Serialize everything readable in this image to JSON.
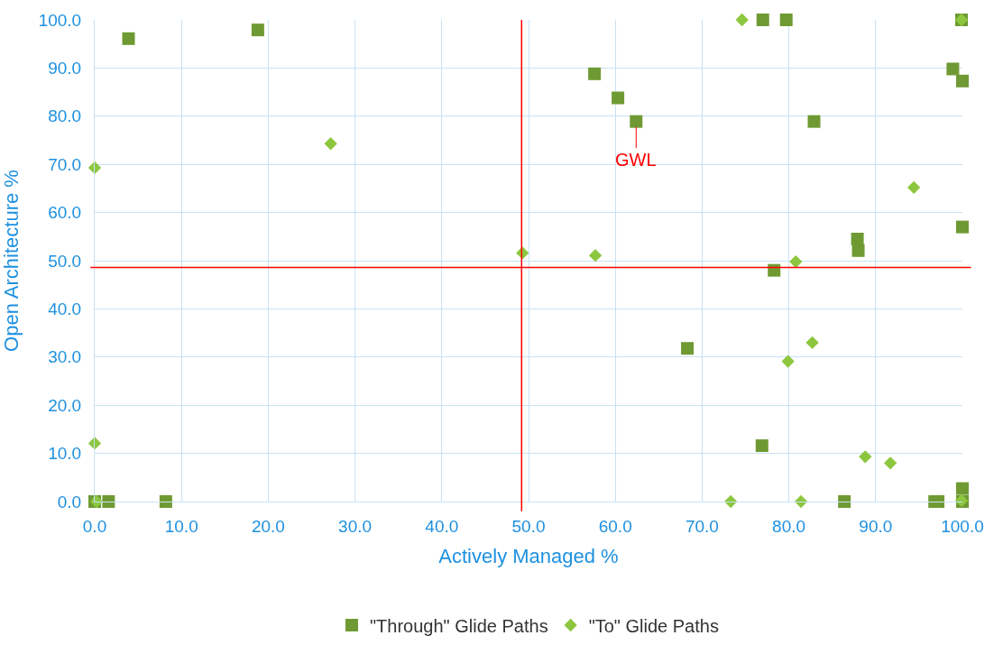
{
  "chart_data": {
    "type": "scatter",
    "xlabel": "Actively Managed %",
    "ylabel": "Open Architecture %",
    "xlim": [
      0,
      100
    ],
    "ylim": [
      0,
      100
    ],
    "xticks": [
      {
        "value": 0,
        "label": "0.0"
      },
      {
        "value": 10,
        "label": "10.0"
      },
      {
        "value": 20,
        "label": "20.0"
      },
      {
        "value": 30,
        "label": "30.0"
      },
      {
        "value": 40,
        "label": "40.0"
      },
      {
        "value": 50,
        "label": "50.0"
      },
      {
        "value": 60,
        "label": "60.0"
      },
      {
        "value": 70,
        "label": "70.0"
      },
      {
        "value": 80,
        "label": "80.0"
      },
      {
        "value": 90,
        "label": "90.0"
      },
      {
        "value": 100,
        "label": "100.0"
      }
    ],
    "yticks": [
      {
        "value": 0,
        "label": "0.0"
      },
      {
        "value": 10,
        "label": "10.0"
      },
      {
        "value": 20,
        "label": "20.0"
      },
      {
        "value": 30,
        "label": "30.0"
      },
      {
        "value": 40,
        "label": "40.0"
      },
      {
        "value": 50,
        "label": "50.0"
      },
      {
        "value": 60,
        "label": "60.0"
      },
      {
        "value": 70,
        "label": "70.0"
      },
      {
        "value": 80,
        "label": "80.0"
      },
      {
        "value": 90,
        "label": "90.0"
      },
      {
        "value": 100,
        "label": "100.0"
      }
    ],
    "grid": true,
    "legend": "bottom",
    "series": [
      {
        "name": "\"Through\" Glide Paths",
        "color": "#6f9a33",
        "marker": "square",
        "x": [
          3.9,
          18.8,
          57.6,
          60.3,
          62.4,
          77.0,
          79.7,
          99.9,
          98.9,
          100,
          82.9,
          87.9,
          88.0,
          100,
          78.3,
          68.3,
          76.9,
          0,
          1.6,
          8.2,
          86.4,
          96.8,
          97.2,
          100,
          100
        ],
        "values": [
          96.1,
          97.9,
          88.8,
          83.8,
          78.9,
          100,
          100,
          100,
          89.8,
          87.3,
          78.9,
          54.5,
          52.1,
          57.0,
          48.0,
          31.8,
          11.6,
          0,
          0,
          0,
          0,
          0,
          0,
          2.7,
          0
        ]
      },
      {
        "name": "\"To\" Glide Paths",
        "color": "#8dc63f",
        "marker": "diamond",
        "x": [
          0,
          27.2,
          74.6,
          99.9,
          94.4,
          49.3,
          57.7,
          80.8,
          82.7,
          79.9,
          0,
          0.2,
          73.3,
          81.4,
          88.8,
          91.7,
          99.9
        ],
        "values": [
          69.3,
          74.3,
          100,
          100,
          65.2,
          51.6,
          51.1,
          49.8,
          33.0,
          29.1,
          12.1,
          0,
          0,
          0,
          9.3,
          8.0,
          0.2
        ]
      }
    ],
    "ref_lines": [
      {
        "axis": "x",
        "value": 49.2,
        "color": "#ff0000"
      },
      {
        "axis": "y",
        "value": 48.6,
        "color": "#ff0000"
      }
    ],
    "annotations": [
      {
        "text": "GWL",
        "x": 62.4,
        "y": 78.9
      }
    ]
  }
}
